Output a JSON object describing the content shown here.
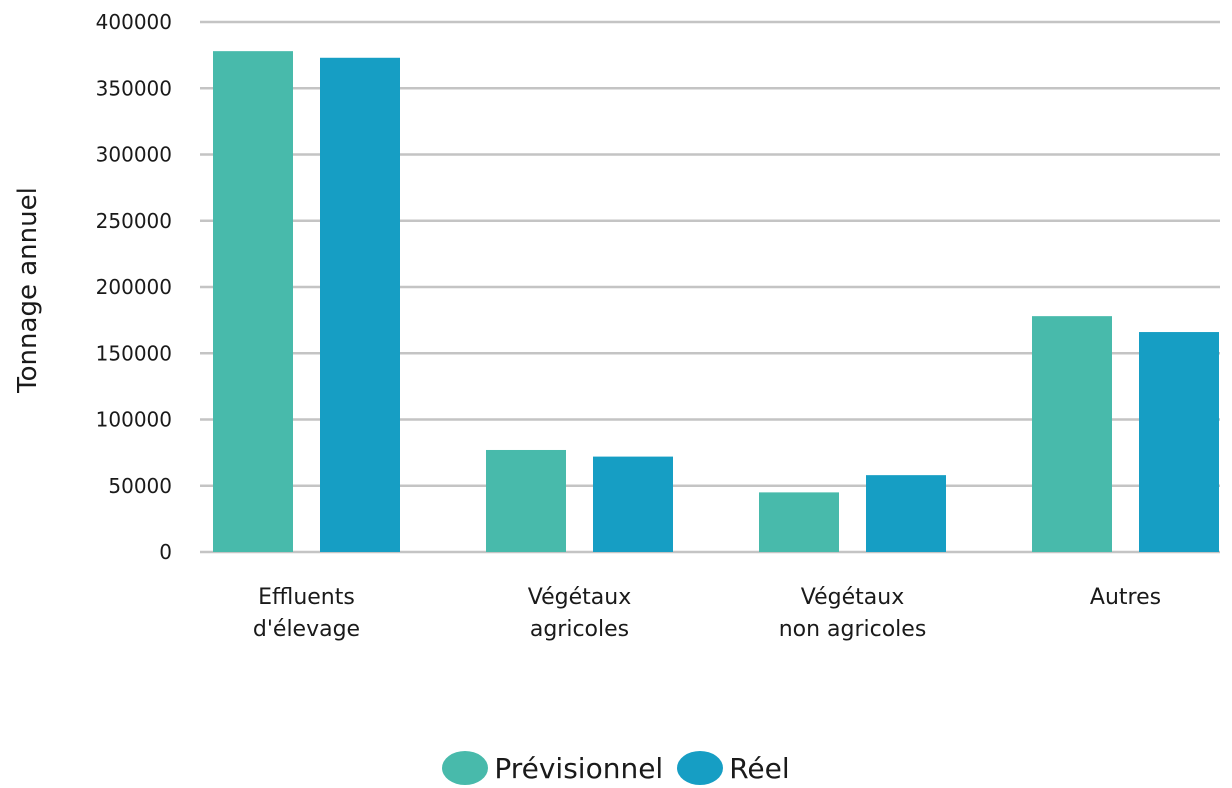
{
  "chart_data": {
    "type": "bar",
    "ylabel": "Tonnage annuel",
    "ylim": [
      0,
      400000
    ],
    "yticks": [
      0,
      50000,
      100000,
      150000,
      200000,
      250000,
      300000,
      350000,
      400000
    ],
    "grid": true,
    "legend_position": "bottom-center",
    "categories": [
      [
        "Effluents",
        "d'élevage"
      ],
      [
        "Végétaux",
        "agricoles"
      ],
      [
        "Végétaux",
        "non agricoles"
      ],
      [
        "Autres"
      ]
    ],
    "series": [
      {
        "name": "Prévisionnel",
        "color": "#48BAAB",
        "values": [
          378000,
          77000,
          45000,
          178000
        ]
      },
      {
        "name": "Réel",
        "color": "#169EC4",
        "values": [
          373000,
          72000,
          58000,
          166000
        ]
      }
    ]
  }
}
